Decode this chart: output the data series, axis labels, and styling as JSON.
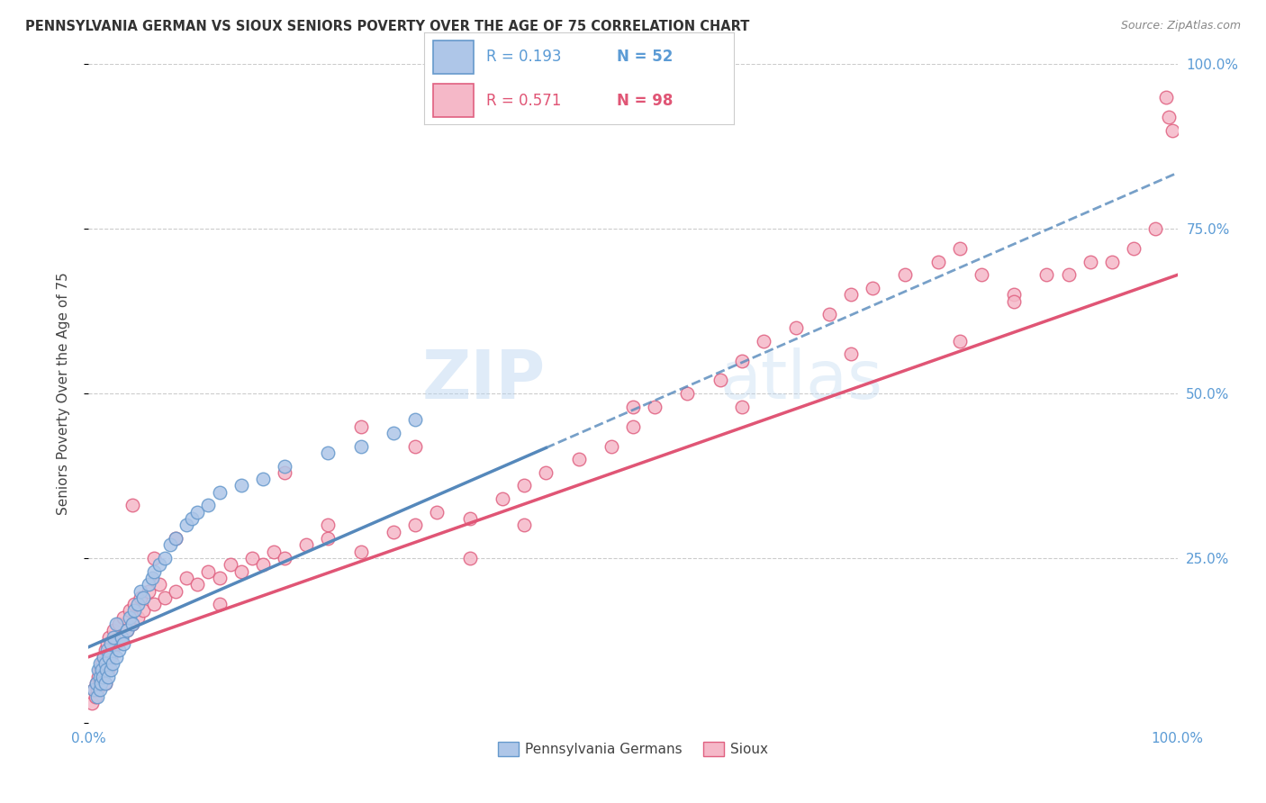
{
  "title": "PENNSYLVANIA GERMAN VS SIOUX SENIORS POVERTY OVER THE AGE OF 75 CORRELATION CHART",
  "source": "Source: ZipAtlas.com",
  "ylabel": "Seniors Poverty Over the Age of 75",
  "xlim": [
    0,
    1.0
  ],
  "ylim": [
    0,
    1.0
  ],
  "color_blue": "#aec6e8",
  "color_blue_edge": "#6699cc",
  "color_pink": "#f5b8c8",
  "color_pink_edge": "#e06080",
  "color_blue_line": "#5588bb",
  "color_pink_line": "#e05575",
  "watermark_zip": "ZIP",
  "watermark_atlas": "atlas",
  "pa_german_x": [
    0.005,
    0.007,
    0.008,
    0.009,
    0.01,
    0.01,
    0.01,
    0.011,
    0.012,
    0.013,
    0.014,
    0.015,
    0.015,
    0.016,
    0.017,
    0.018,
    0.019,
    0.02,
    0.02,
    0.022,
    0.023,
    0.025,
    0.025,
    0.028,
    0.03,
    0.032,
    0.035,
    0.038,
    0.04,
    0.042,
    0.045,
    0.048,
    0.05,
    0.055,
    0.058,
    0.06,
    0.065,
    0.07,
    0.075,
    0.08,
    0.09,
    0.095,
    0.1,
    0.11,
    0.12,
    0.14,
    0.16,
    0.18,
    0.22,
    0.25,
    0.28,
    0.3
  ],
  "pa_german_y": [
    0.05,
    0.06,
    0.04,
    0.08,
    0.05,
    0.07,
    0.09,
    0.06,
    0.08,
    0.07,
    0.1,
    0.06,
    0.09,
    0.08,
    0.11,
    0.07,
    0.1,
    0.08,
    0.12,
    0.09,
    0.13,
    0.1,
    0.15,
    0.11,
    0.13,
    0.12,
    0.14,
    0.16,
    0.15,
    0.17,
    0.18,
    0.2,
    0.19,
    0.21,
    0.22,
    0.23,
    0.24,
    0.25,
    0.27,
    0.28,
    0.3,
    0.31,
    0.32,
    0.33,
    0.35,
    0.36,
    0.37,
    0.39,
    0.41,
    0.42,
    0.44,
    0.46
  ],
  "sioux_x": [
    0.003,
    0.005,
    0.006,
    0.007,
    0.008,
    0.009,
    0.01,
    0.01,
    0.011,
    0.012,
    0.013,
    0.014,
    0.015,
    0.015,
    0.016,
    0.017,
    0.018,
    0.019,
    0.02,
    0.022,
    0.023,
    0.025,
    0.028,
    0.03,
    0.032,
    0.035,
    0.038,
    0.04,
    0.042,
    0.045,
    0.048,
    0.05,
    0.055,
    0.06,
    0.065,
    0.07,
    0.08,
    0.09,
    0.1,
    0.11,
    0.12,
    0.13,
    0.14,
    0.15,
    0.16,
    0.17,
    0.18,
    0.2,
    0.22,
    0.25,
    0.28,
    0.3,
    0.32,
    0.35,
    0.38,
    0.4,
    0.42,
    0.45,
    0.48,
    0.5,
    0.52,
    0.55,
    0.58,
    0.6,
    0.62,
    0.65,
    0.68,
    0.7,
    0.72,
    0.75,
    0.78,
    0.8,
    0.82,
    0.85,
    0.88,
    0.9,
    0.92,
    0.94,
    0.96,
    0.98,
    0.99,
    0.992,
    0.995,
    0.25,
    0.3,
    0.18,
    0.22,
    0.35,
    0.4,
    0.5,
    0.6,
    0.7,
    0.8,
    0.85,
    0.12,
    0.08,
    0.06,
    0.04
  ],
  "sioux_y": [
    0.03,
    0.05,
    0.04,
    0.06,
    0.05,
    0.07,
    0.06,
    0.08,
    0.07,
    0.09,
    0.08,
    0.1,
    0.06,
    0.11,
    0.09,
    0.12,
    0.08,
    0.13,
    0.1,
    0.11,
    0.14,
    0.12,
    0.15,
    0.13,
    0.16,
    0.14,
    0.17,
    0.15,
    0.18,
    0.16,
    0.19,
    0.17,
    0.2,
    0.18,
    0.21,
    0.19,
    0.2,
    0.22,
    0.21,
    0.23,
    0.22,
    0.24,
    0.23,
    0.25,
    0.24,
    0.26,
    0.25,
    0.27,
    0.28,
    0.26,
    0.29,
    0.3,
    0.32,
    0.31,
    0.34,
    0.36,
    0.38,
    0.4,
    0.42,
    0.45,
    0.48,
    0.5,
    0.52,
    0.55,
    0.58,
    0.6,
    0.62,
    0.65,
    0.66,
    0.68,
    0.7,
    0.72,
    0.68,
    0.65,
    0.68,
    0.68,
    0.7,
    0.7,
    0.72,
    0.75,
    0.95,
    0.92,
    0.9,
    0.45,
    0.42,
    0.38,
    0.3,
    0.25,
    0.3,
    0.48,
    0.48,
    0.56,
    0.58,
    0.64,
    0.18,
    0.28,
    0.25,
    0.33
  ],
  "pa_line_x_end": 0.42,
  "pa_line_intercept": 0.115,
  "pa_line_slope": 0.72,
  "sioux_line_intercept": 0.1,
  "sioux_line_slope": 0.58
}
